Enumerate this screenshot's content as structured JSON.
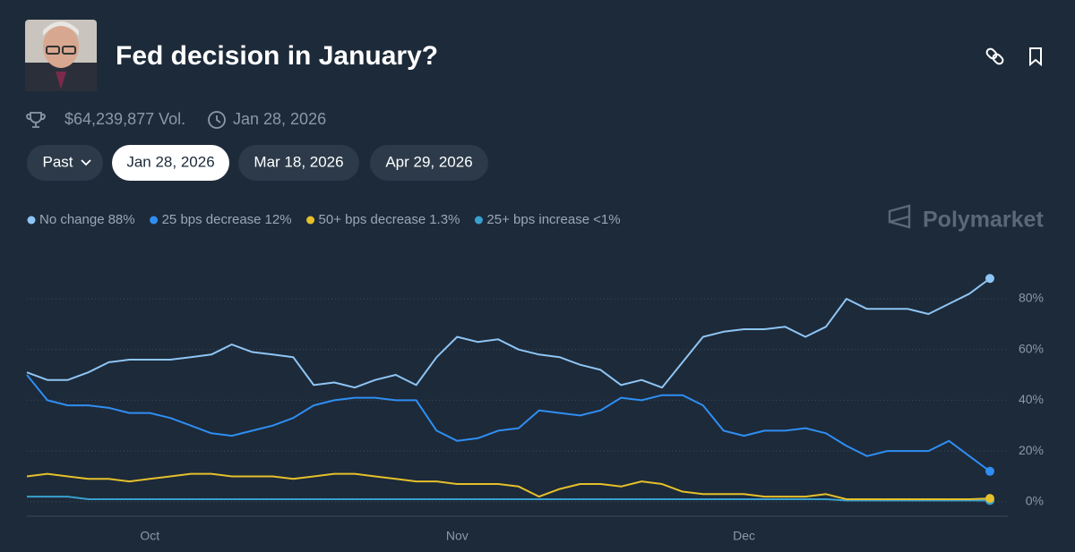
{
  "header": {
    "title": "Fed decision in January?",
    "volume": "$64,239,877 Vol.",
    "end_date": "Jan 28, 2026"
  },
  "tabs": [
    "Past",
    "Jan 28, 2026",
    "Mar 18, 2026",
    "Apr 29, 2026"
  ],
  "brand": "Polymarket",
  "chart_data": {
    "type": "line",
    "categories": [
      null,
      null,
      null,
      null,
      null,
      null,
      "Oct",
      null,
      null,
      null,
      null,
      null,
      null,
      null,
      null,
      null,
      null,
      null,
      null,
      null,
      null,
      "Nov",
      null,
      null,
      null,
      null,
      null,
      null,
      null,
      null,
      null,
      null,
      null,
      null,
      null,
      "Dec",
      null,
      null,
      null,
      null,
      null,
      null,
      null,
      null,
      null,
      null,
      null,
      null
    ],
    "series": [
      {
        "name": "No change",
        "legend_label": "88%",
        "color": "#8ec5f5",
        "values": [
          51,
          48,
          48,
          51,
          55,
          56,
          56,
          56,
          57,
          58,
          62,
          59,
          58,
          57,
          46,
          47,
          45,
          48,
          50,
          46,
          57,
          65,
          63,
          64,
          60,
          58,
          57,
          54,
          52,
          46,
          48,
          45,
          55,
          65,
          67,
          68,
          68,
          69,
          65,
          69,
          80,
          76,
          76,
          76,
          74,
          78,
          82,
          88
        ]
      },
      {
        "name": "25 bps decrease",
        "legend_label": "12%",
        "color": "#2f8ef3",
        "values": [
          50,
          40,
          38,
          38,
          37,
          35,
          35,
          33,
          30,
          27,
          26,
          28,
          30,
          33,
          38,
          40,
          41,
          41,
          40,
          40,
          28,
          24,
          25,
          28,
          29,
          36,
          35,
          34,
          36,
          41,
          40,
          42,
          42,
          38,
          28,
          26,
          28,
          28,
          29,
          27,
          22,
          18,
          20,
          20,
          20,
          24,
          18,
          12
        ]
      },
      {
        "name": "50+ bps decrease",
        "legend_label": "1.3%",
        "color": "#e5c02b",
        "values": [
          10,
          11,
          10,
          9,
          9,
          8,
          9,
          10,
          11,
          11,
          10,
          10,
          10,
          9,
          10,
          11,
          11,
          10,
          9,
          8,
          8,
          7,
          7,
          7,
          6,
          2,
          5,
          7,
          7,
          6,
          8,
          7,
          4,
          3,
          3,
          3,
          2,
          2,
          2,
          3,
          1,
          1,
          1,
          1,
          1,
          1,
          1,
          1.3
        ]
      },
      {
        "name": "25+ bps increase",
        "legend_label": "<1%",
        "color": "#38a0d0",
        "values": [
          2,
          2,
          2,
          1,
          1,
          1,
          1,
          1,
          1,
          1,
          1,
          1,
          1,
          1,
          1,
          1,
          1,
          1,
          1,
          1,
          1,
          1,
          1,
          1,
          1,
          1,
          1,
          1,
          1,
          1,
          1,
          1,
          1,
          1,
          1,
          1,
          1,
          1,
          1,
          1,
          0.5,
          0.5,
          0.5,
          0.5,
          0.5,
          0.5,
          0.5,
          0.5
        ]
      }
    ],
    "ylim": [
      -5,
      90
    ],
    "yticks": [
      {
        "value": 0,
        "label": "0%"
      },
      {
        "value": 20,
        "label": "20%"
      },
      {
        "value": 40,
        "label": "40%"
      },
      {
        "value": 60,
        "label": "60%"
      },
      {
        "value": 80,
        "label": "80%"
      }
    ],
    "grid": true
  }
}
